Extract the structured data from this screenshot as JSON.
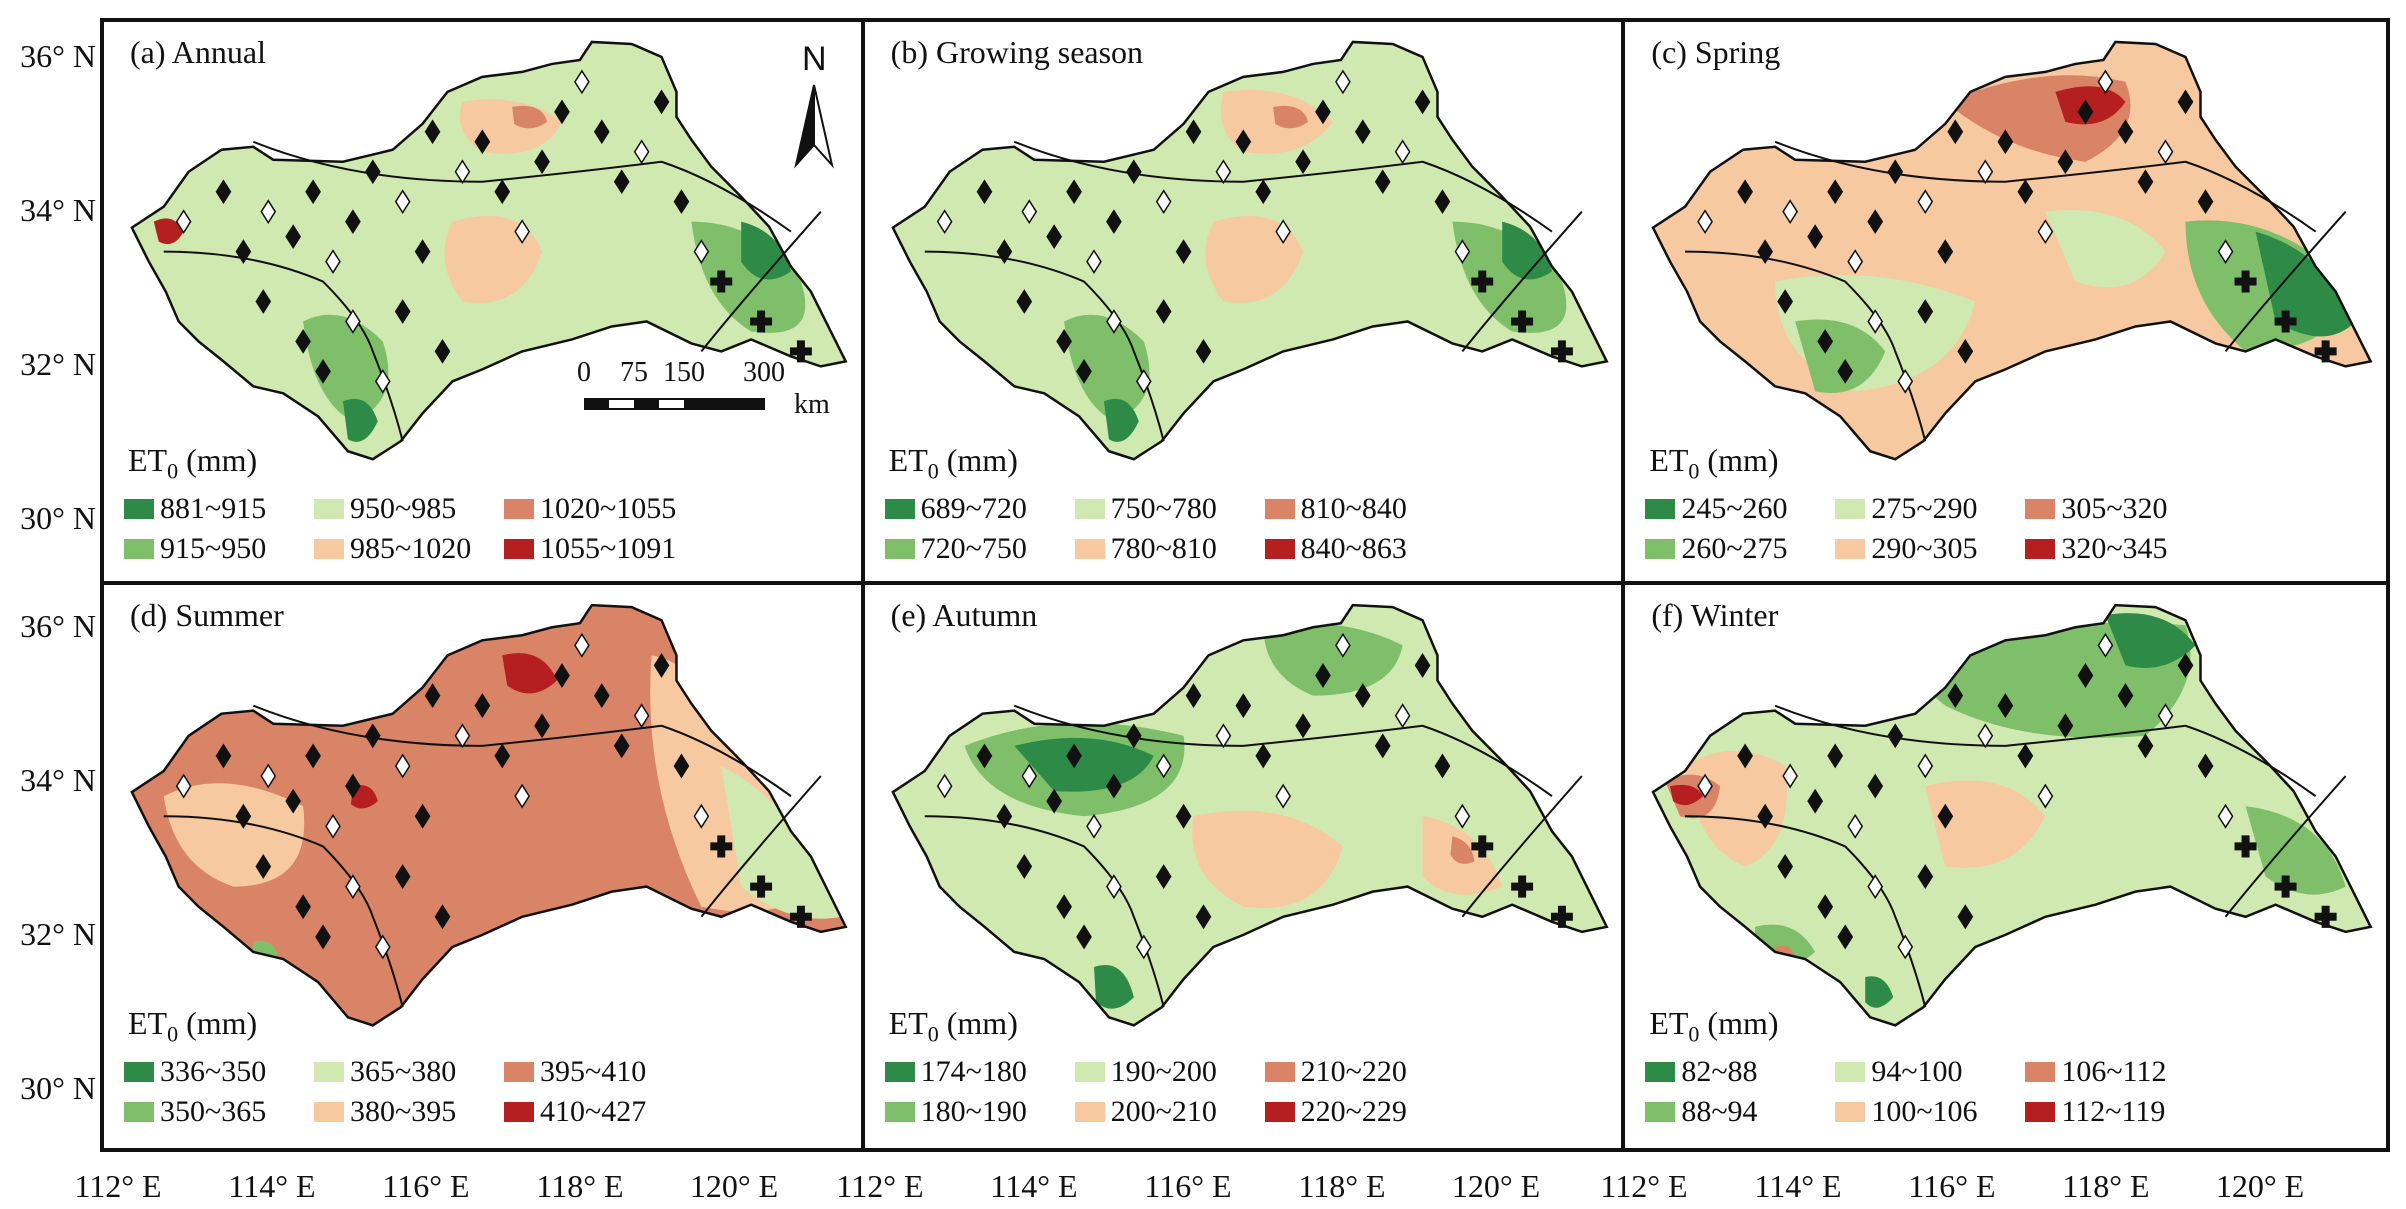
{
  "figure": {
    "latitude_labels": [
      "36° N",
      "34° N",
      "32° N",
      "30° N",
      "36° N",
      "34° N",
      "32° N",
      "30° N"
    ],
    "longitude_labels": [
      "112° E",
      "114° E",
      "116° E",
      "118° E",
      "120° E",
      "112° E",
      "114° E",
      "116° E",
      "118° E",
      "120° E",
      "112° E",
      "114° E",
      "116° E",
      "118° E",
      "120° E"
    ]
  },
  "north_arrow": {
    "label": "N"
  },
  "scale_bar": {
    "ticks": [
      "0",
      "75",
      "150",
      "300"
    ],
    "unit": "km"
  },
  "colors": {
    "c1": "#2e8b47",
    "c2": "#7fbf6a",
    "c3": "#cfe9b0",
    "c4": "#f6c9a0",
    "c5": "#d98367",
    "c6": "#b51f1f"
  },
  "panels": [
    {
      "title": "(a) Annual",
      "legend_title_main": "ET",
      "legend_title_sub": "0",
      "legend_title_unit": " (mm)",
      "classes": [
        "881~915",
        "915~950",
        "950~985",
        "985~1020",
        "1020~1055",
        "1055~1091"
      ],
      "dominant": "c3"
    },
    {
      "title": "(b) Growing season",
      "legend_title_main": "ET",
      "legend_title_sub": "0",
      "legend_title_unit": " (mm)",
      "classes": [
        "689~720",
        "720~750",
        "750~780",
        "780~810",
        "810~840",
        "840~863"
      ],
      "dominant": "c3"
    },
    {
      "title": "(c) Spring",
      "legend_title_main": "ET",
      "legend_title_sub": "0",
      "legend_title_unit": " (mm)",
      "classes": [
        "245~260",
        "260~275",
        "275~290",
        "290~305",
        "305~320",
        "320~345"
      ],
      "dominant": "c4"
    },
    {
      "title": "(d) Summer",
      "legend_title_main": "ET",
      "legend_title_sub": "0",
      "legend_title_unit": " (mm)",
      "classes": [
        "336~350",
        "350~365",
        "365~380",
        "380~395",
        "395~410",
        "410~427"
      ],
      "dominant": "c5"
    },
    {
      "title": "(e) Autumn",
      "legend_title_main": "ET",
      "legend_title_sub": "0",
      "legend_title_unit": " (mm)",
      "classes": [
        "174~180",
        "180~190",
        "190~200",
        "200~210",
        "210~220",
        "220~229"
      ],
      "dominant": "c3"
    },
    {
      "title": "(f) Winter",
      "legend_title_main": "ET",
      "legend_title_sub": "0",
      "legend_title_unit": " (mm)",
      "classes": [
        "82~88",
        "88~94",
        "94~100",
        "100~106",
        "106~112",
        "112~119"
      ],
      "dominant": "c3"
    }
  ]
}
